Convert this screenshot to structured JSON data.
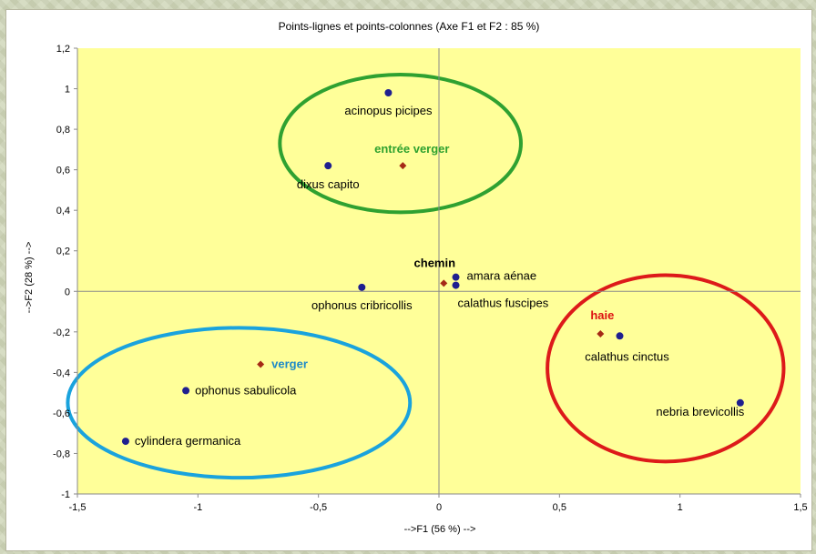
{
  "chart_data": {
    "type": "scatter",
    "title": "Points-lignes et points-colonnes (Axe F1 et F2 : 85 %)",
    "xlabel": "-->F1 (56 %) -->",
    "ylabel": "-->F2 (28 %) -->",
    "xlim": [
      -1.5,
      1.5
    ],
    "ylim": [
      -1,
      1.2
    ],
    "grid": false,
    "plot_background": "#ffff99",
    "x_ticks": [
      -1.5,
      -1,
      -0.5,
      0,
      0.5,
      1,
      1.5
    ],
    "x_tick_labels": [
      "-1,5",
      "-1",
      "-0,5",
      "0",
      "0,5",
      "1",
      "1,5"
    ],
    "y_ticks": [
      -1,
      -0.8,
      -0.6,
      -0.4,
      -0.2,
      0,
      0.2,
      0.4,
      0.6,
      0.8,
      1,
      1.2
    ],
    "y_tick_labels": [
      "-1",
      "-0,8",
      "-0,6",
      "-0,4",
      "-0,2",
      "0",
      "0,2",
      "0,4",
      "0,6",
      "0,8",
      "1",
      "1,2"
    ],
    "series": [
      {
        "kind": "species",
        "color": "#1f1f8f",
        "marker": "circle",
        "points": [
          {
            "x": -0.21,
            "y": 0.98,
            "label": "acinopus picipes",
            "label_anchor": "middle",
            "dx": 0,
            "dy": 24
          },
          {
            "x": -0.46,
            "y": 0.62,
            "label": "dixus capito",
            "label_anchor": "middle",
            "dx": 0,
            "dy": 25
          },
          {
            "x": 0.07,
            "y": 0.07,
            "label": "amara aénae",
            "label_anchor": "start",
            "dx": 12,
            "dy": 3
          },
          {
            "x": -0.32,
            "y": 0.02,
            "label": "ophonus cribricollis",
            "label_anchor": "middle",
            "dx": 0,
            "dy": 24
          },
          {
            "x": 0.07,
            "y": 0.03,
            "label": "calathus fuscipes",
            "label_anchor": "start",
            "dx": 2,
            "dy": 24
          },
          {
            "x": 0.75,
            "y": -0.22,
            "label": "calathus cinctus",
            "label_anchor": "middle",
            "dx": 8,
            "dy": 27
          },
          {
            "x": 1.25,
            "y": -0.55,
            "label": "nebria brevicollis",
            "label_anchor": "middle",
            "dx": -44,
            "dy": 14
          },
          {
            "x": -1.05,
            "y": -0.49,
            "label": "ophonus sabulicola",
            "label_anchor": "start",
            "dx": 10,
            "dy": 4
          },
          {
            "x": -1.3,
            "y": -0.74,
            "label": "cylindera germanica",
            "label_anchor": "start",
            "dx": 10,
            "dy": 4
          }
        ]
      },
      {
        "kind": "sites",
        "color": "#a52a16",
        "marker": "diamond",
        "points": [
          {
            "x": -0.15,
            "y": 0.62,
            "label": "entrée verger",
            "label_color": "#2fa12f",
            "label_anchor": "middle",
            "dx": 10,
            "dy": -14
          },
          {
            "x": 0.02,
            "y": 0.04,
            "label": "chemin",
            "label_color": "#000000",
            "label_anchor": "middle",
            "dx": -10,
            "dy": -18
          },
          {
            "x": 0.67,
            "y": -0.21,
            "label": "haie",
            "label_color": "#dd1111",
            "label_anchor": "middle",
            "dx": 2,
            "dy": -16
          },
          {
            "x": -0.74,
            "y": -0.36,
            "label": "verger",
            "label_color": "#1e8ac8",
            "label_anchor": "start",
            "dx": 12,
            "dy": 4
          }
        ]
      }
    ],
    "annotations": [
      {
        "shape": "ellipse",
        "color": "#2fa131",
        "cx": -0.16,
        "cy": 0.73,
        "rx": 0.5,
        "ry": 0.34
      },
      {
        "shape": "ellipse",
        "color": "#1aa3dd",
        "cx": -0.83,
        "cy": -0.55,
        "rx": 0.71,
        "ry": 0.37
      },
      {
        "shape": "ellipse",
        "color": "#dd1a1a",
        "cx": 0.94,
        "cy": -0.38,
        "rx": 0.49,
        "ry": 0.46
      }
    ]
  }
}
